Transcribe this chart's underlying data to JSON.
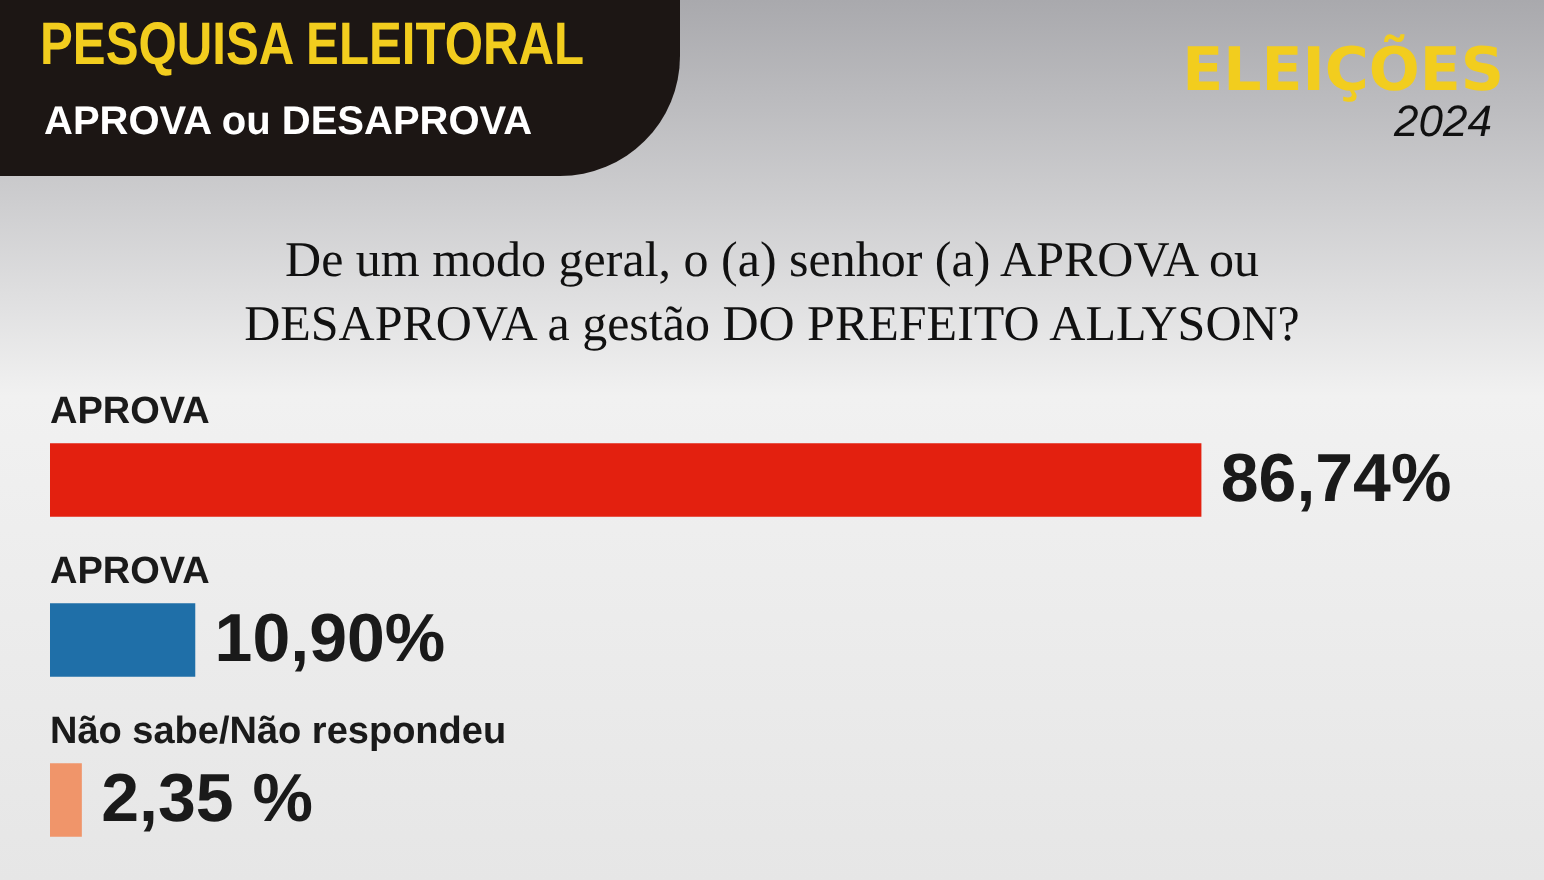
{
  "chart_data": {
    "type": "bar",
    "orientation": "horizontal",
    "title": "PESQUISA ELEITORAL",
    "subtitle": "APROVA ou DESAPROVA",
    "annotations": [
      "ELEIÇÕES",
      "2024",
      "De um modo geral, o (a) senhor (a) APROVA ou DESAPROVA a gestão DO PREFEITO ALLYSON?"
    ],
    "categories": [
      "APROVA",
      "APROVA",
      "Não sabe/Não respondeu"
    ],
    "values": [
      86.74,
      10.9,
      2.35
    ],
    "colors": [
      "#e3200f",
      "#1f6fa8",
      "#f0956a"
    ],
    "value_labels": [
      "86,74%",
      "10,90%",
      "2,35 %"
    ],
    "tick_labels": false,
    "legend": false
  }
}
